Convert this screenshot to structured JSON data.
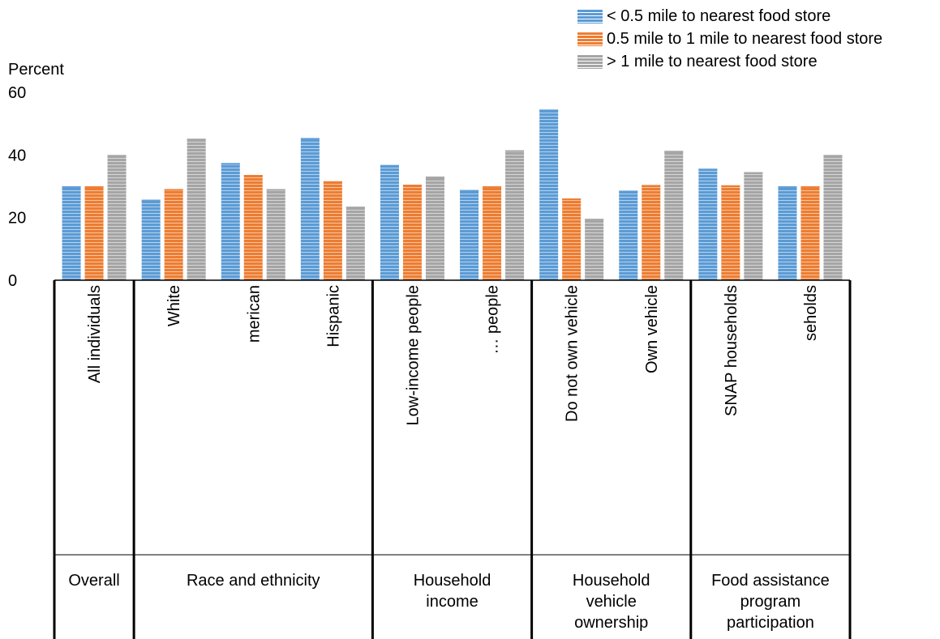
{
  "chart_data": {
    "type": "bar",
    "ylabel": "Percent",
    "ylim": [
      0,
      60
    ],
    "yticks": [
      "60",
      "40",
      "20",
      "0"
    ],
    "categories": [
      "All individuals",
      "White",
      "merican",
      "Hispanic",
      "Low-income people",
      "… people",
      "Do not own vehicle",
      "Own vehicle",
      "SNAP households",
      "seholds"
    ],
    "groups": [
      {
        "label": "Overall",
        "lines": [
          "Overall"
        ],
        "count": 1
      },
      {
        "label": "Race and ethnicity",
        "lines": [
          "Race and ethnicity"
        ],
        "count": 3
      },
      {
        "label": "Household income",
        "lines": [
          "Household",
          "income"
        ],
        "count": 2
      },
      {
        "label": "Household vehicle ownership",
        "lines": [
          "Household",
          "vehicle",
          "ownership"
        ],
        "count": 2
      },
      {
        "label": "Food assistance program participation",
        "lines": [
          "Food assistance",
          "program",
          "participation"
        ],
        "count": 2
      }
    ],
    "series": [
      {
        "name": "< 0.5 mile to nearest food store",
        "color": "#5b9bd5",
        "values": [
          30,
          25.7,
          37.4,
          45.4,
          36.8,
          28.8,
          54.5,
          28.6,
          35.6,
          30
        ]
      },
      {
        "name": "0.5 mile to 1 mile to nearest food store",
        "color": "#ed7d31",
        "values": [
          30,
          29.1,
          33.6,
          31.6,
          30.5,
          30,
          26.1,
          30.4,
          30.3,
          30
        ]
      },
      {
        "name": "> 1 mile to nearest food store",
        "color": "#a5a5a5",
        "values": [
          40,
          45.2,
          29.1,
          23.5,
          33.1,
          41.5,
          19.6,
          41.3,
          34.5,
          40
        ]
      }
    ],
    "legend_position": "top-right",
    "grid": false
  }
}
